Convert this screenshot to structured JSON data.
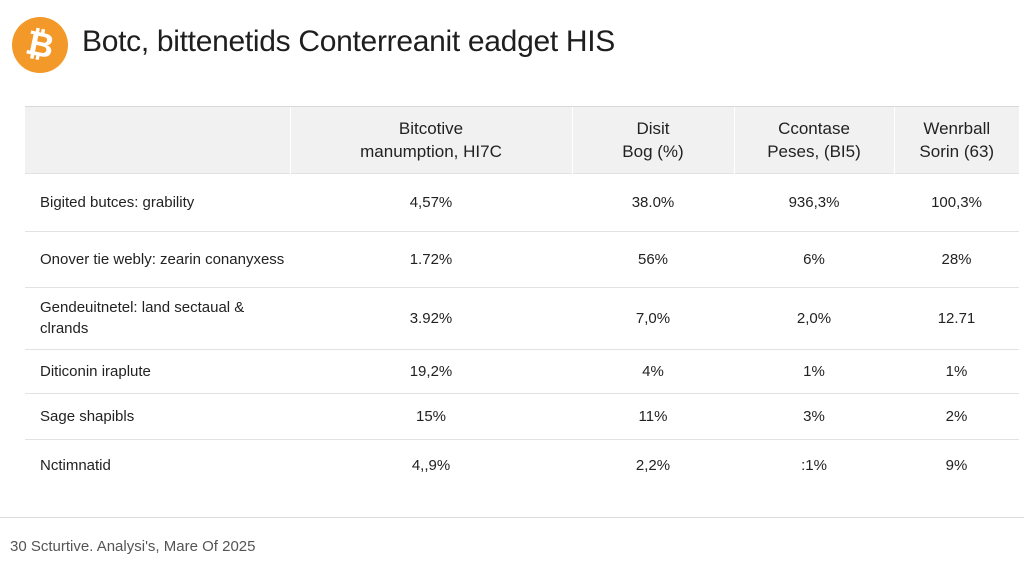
{
  "header": {
    "logo_glyph": "₿",
    "title": "Botc, bittenetids Conterreanit eadget HIS"
  },
  "table": {
    "columns": [
      "",
      "Bitcotive\nmanumption, HI7C",
      "Disit\nBog (%)",
      "Ccontase\nPeses, (BI5)",
      "Wenrball\nSorin (63)"
    ],
    "rows": [
      {
        "label": "Bigited butces: grability",
        "values": [
          "4,57%",
          "38.0%",
          "936,3%",
          "100,3%"
        ]
      },
      {
        "label": "Onover tie webly: zearin conanyxess",
        "values": [
          "1.72%",
          "56%",
          "6%",
          "28%"
        ]
      },
      {
        "label": "Gendeuitnetel: land sectaual & clrands",
        "values": [
          "3.92%",
          "7,0%",
          "2,0%",
          "12.71"
        ]
      },
      {
        "label": "Diticonin iraplute",
        "values": [
          "19,2%",
          "4%",
          "1%",
          "1%"
        ]
      },
      {
        "label": "Sage shapibls",
        "values": [
          "15%",
          "11%",
          "3%",
          "2%"
        ]
      },
      {
        "label": "Nctimnatid",
        "values": [
          "4,,9%",
          "2,2%",
          ":1%",
          "9%"
        ]
      }
    ]
  },
  "footer": {
    "source": "30 Scturtive. Analysi's, Mare Of 2025"
  },
  "colors": {
    "logo": "#f2992a",
    "header_row": "#f1f1f1"
  }
}
